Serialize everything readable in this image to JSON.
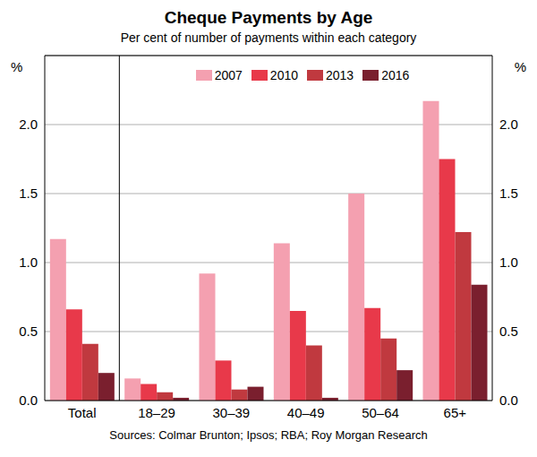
{
  "chart_data": {
    "type": "bar",
    "title": "Cheque Payments by Age",
    "subtitle": "Per cent of number of payments within each category",
    "source": "Sources: Colmar Brunton; Ipsos; RBA; Roy Morgan Research",
    "y_label": "%",
    "y2_label": "%",
    "categories": [
      "Total",
      "18–29",
      "30–39",
      "40–49",
      "50–64",
      "65+"
    ],
    "series": [
      {
        "name": "2007",
        "color": "#f4a0b0",
        "values": [
          1.17,
          0.16,
          0.92,
          1.14,
          1.5,
          2.17
        ]
      },
      {
        "name": "2010",
        "color": "#e8394a",
        "values": [
          0.66,
          0.12,
          0.29,
          0.65,
          0.67,
          1.75
        ]
      },
      {
        "name": "2013",
        "color": "#c0393f",
        "values": [
          0.41,
          0.06,
          0.08,
          0.4,
          0.45,
          1.22
        ]
      },
      {
        "name": "2016",
        "color": "#7a1f2e",
        "values": [
          0.2,
          0.02,
          0.1,
          0.02,
          0.22,
          0.84
        ]
      }
    ],
    "ylim": [
      0,
      2.5
    ],
    "yticks": [
      {
        "value": 0,
        "label": "0.0"
      },
      {
        "value": 0.5,
        "label": "0.5"
      },
      {
        "value": 1,
        "label": "1.0"
      },
      {
        "value": 1.5,
        "label": "1.5"
      },
      {
        "value": 2,
        "label": "2.0"
      }
    ],
    "y2lim": [
      0,
      2.5
    ],
    "y2ticks": [
      {
        "value": 0,
        "label": "0.0"
      },
      {
        "value": 0.5,
        "label": "0.5"
      },
      {
        "value": 1,
        "label": "1.0"
      },
      {
        "value": 1.5,
        "label": "1.5"
      },
      {
        "value": 2,
        "label": "2.0"
      }
    ],
    "grid": true,
    "legend": "top"
  }
}
